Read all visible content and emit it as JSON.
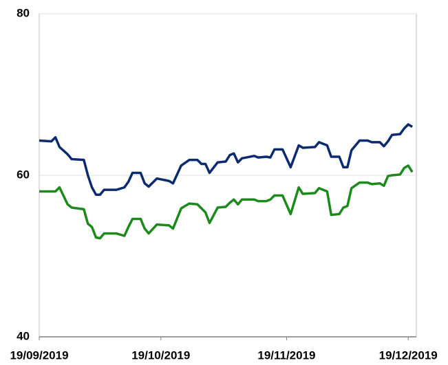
{
  "chart_data": {
    "type": "line",
    "x": [
      "2019-09-19",
      "2019-09-22",
      "2019-09-23",
      "2019-09-24",
      "2019-09-26",
      "2019-09-27",
      "2019-09-30",
      "2019-10-01",
      "2019-10-02",
      "2019-10-03",
      "2019-10-04",
      "2019-10-05",
      "2019-10-08",
      "2019-10-10",
      "2019-10-11",
      "2019-10-12",
      "2019-10-14",
      "2019-10-15",
      "2019-10-16",
      "2019-10-18",
      "2019-10-21",
      "2019-10-22",
      "2019-10-24",
      "2019-10-26",
      "2019-10-28",
      "2019-10-29",
      "2019-10-30",
      "2019-10-31",
      "2019-11-02",
      "2019-11-04",
      "2019-11-05",
      "2019-11-06",
      "2019-11-07",
      "2019-11-08",
      "2019-11-11",
      "2019-11-12",
      "2019-11-14",
      "2019-11-15",
      "2019-11-16",
      "2019-11-18",
      "2019-11-20",
      "2019-11-22",
      "2019-11-23",
      "2019-11-26",
      "2019-11-27",
      "2019-11-29",
      "2019-11-30",
      "2019-12-02",
      "2019-12-03",
      "2019-12-04",
      "2019-12-05",
      "2019-12-07",
      "2019-12-09",
      "2019-12-10",
      "2019-12-12",
      "2019-12-13",
      "2019-12-14",
      "2019-12-15",
      "2019-12-17",
      "2019-12-18",
      "2019-12-19",
      "2019-12-20"
    ],
    "series": [
      {
        "color": "#0b2a6f",
        "values": [
          64.3,
          64.2,
          64.7,
          63.5,
          62.6,
          62.0,
          61.9,
          60.0,
          58.5,
          57.6,
          57.6,
          58.2,
          58.2,
          58.5,
          59.2,
          60.3,
          60.3,
          59.0,
          58.6,
          59.6,
          59.3,
          59.0,
          61.2,
          61.9,
          61.9,
          61.4,
          61.4,
          60.3,
          61.6,
          61.7,
          62.5,
          62.7,
          61.6,
          62.1,
          62.4,
          62.2,
          62.3,
          62.2,
          63.2,
          63.2,
          61.0,
          63.7,
          63.4,
          63.5,
          64.1,
          63.7,
          62.3,
          62.3,
          61.0,
          61.0,
          63.1,
          64.3,
          64.3,
          64.1,
          64.1,
          63.6,
          64.2,
          65.0,
          65.1,
          65.8,
          66.3,
          66.0
        ]
      },
      {
        "color": "#1b8a1b",
        "values": [
          58.0,
          58.0,
          58.0,
          58.5,
          56.4,
          56.0,
          55.8,
          54.0,
          53.6,
          52.3,
          52.2,
          52.8,
          52.8,
          52.5,
          53.6,
          54.6,
          54.6,
          53.4,
          52.8,
          53.9,
          53.8,
          53.4,
          55.9,
          56.5,
          56.4,
          55.9,
          55.4,
          54.1,
          56.0,
          56.1,
          56.6,
          57.0,
          56.4,
          57.0,
          57.0,
          56.8,
          56.8,
          57.0,
          57.5,
          57.5,
          55.2,
          58.5,
          57.7,
          57.8,
          58.4,
          58.0,
          55.1,
          55.2,
          56.0,
          56.2,
          58.4,
          59.1,
          59.1,
          58.9,
          59.0,
          58.7,
          59.9,
          60.0,
          60.1,
          60.9,
          61.2,
          60.4
        ]
      }
    ],
    "xlim": [
      "2019-09-19",
      "2019-12-21"
    ],
    "xticks": [
      {
        "value": "2019-09-19",
        "label": "19/09/2019"
      },
      {
        "value": "2019-10-19",
        "label": "19/10/2019"
      },
      {
        "value": "2019-11-19",
        "label": "19/11/2019"
      },
      {
        "value": "2019-12-19",
        "label": "19/12/2019"
      }
    ],
    "ylim": [
      40,
      80
    ],
    "yticks": [
      40,
      60,
      80
    ],
    "grid": true
  }
}
